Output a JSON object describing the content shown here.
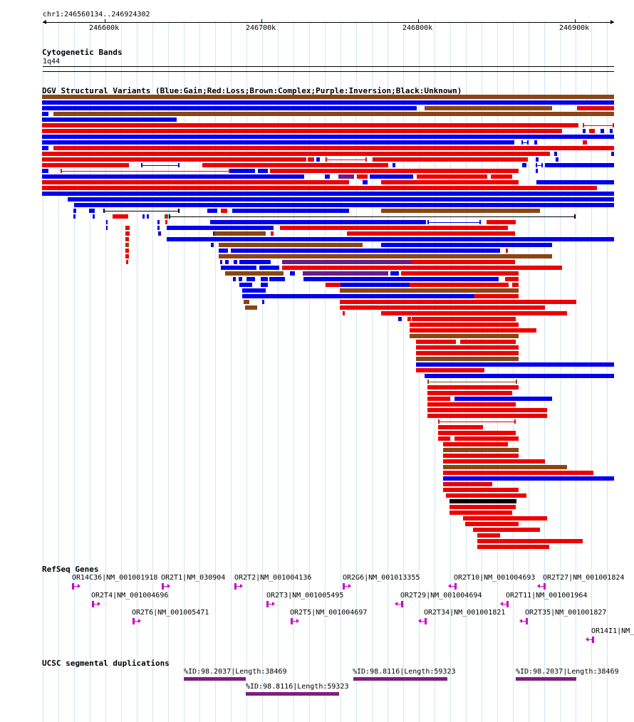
{
  "ruler": {
    "position": "chr1:246560134..246924302",
    "ticks": [
      "246600k",
      "246700k",
      "246800k",
      "246900k"
    ]
  },
  "tracks": {
    "cytoband": {
      "title": "Cytogenetic Bands",
      "band": "1q44"
    },
    "dgv": {
      "title": "DGV Structural Variants (Blue:Gain;Red:Loss;Brown:Complex;Purple:Inversion;Black:Unknown)"
    },
    "refseq": {
      "title": "RefSeq Genes",
      "genes": [
        {
          "label": "OR14C36|NM_001001918",
          "strand": "+"
        },
        {
          "label": "OR2T1|NM_030904",
          "strand": "+"
        },
        {
          "label": "OR2T2|NM_001004136",
          "strand": "+"
        },
        {
          "label": "OR2G6|NM_001013355",
          "strand": "+"
        },
        {
          "label": "OR2T10|NM_001004693",
          "strand": "-"
        },
        {
          "label": "OR2T27|NM_001001824",
          "strand": "-"
        },
        {
          "label": "OR2T4|NM_001004696",
          "strand": "+"
        },
        {
          "label": "OR2T3|NM_001005495",
          "strand": "+"
        },
        {
          "label": "OR2T29|NM_001004694",
          "strand": "-"
        },
        {
          "label": "OR2T11|NM_001001964",
          "strand": "-"
        },
        {
          "label": "OR2T6|NM_001005471",
          "strand": "+"
        },
        {
          "label": "OR2T5|NM_001004697",
          "strand": "+"
        },
        {
          "label": "OR2T34|NM_001001821",
          "strand": "-"
        },
        {
          "label": "OR2T35|NM_001001827",
          "strand": "-"
        },
        {
          "label": "OR14I1|NM_",
          "strand": "-"
        }
      ]
    },
    "segdups": {
      "title": "UCSC segmental duplications",
      "items": [
        {
          "label": "%ID:98.2037|Length:38469"
        },
        {
          "label": "%ID:98.8116|Length:59323"
        },
        {
          "label": "%ID:98.2037|Length:38469"
        },
        {
          "label": "%ID:98.8116|Length:59323"
        }
      ]
    }
  },
  "colors": {
    "gain": "#0000ee",
    "loss": "#ee0000",
    "complex": "#8b4513",
    "inversion": "#6a1b8a",
    "unknown": "#000000",
    "gene": "#cc00cc",
    "segdup": "#7f1f7f",
    "grid": "#cfe7f5"
  }
}
